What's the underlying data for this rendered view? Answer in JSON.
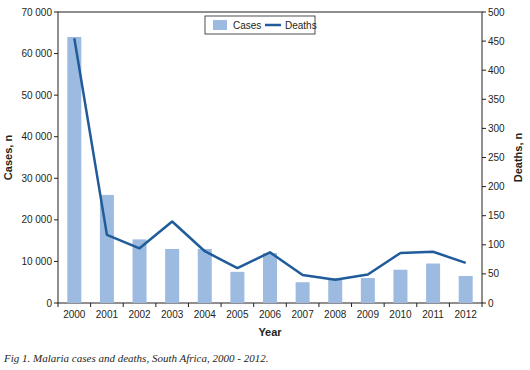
{
  "chart_data": {
    "type": "bar",
    "caption": "Fig 1. Malaria cases and deaths, South Africa, 2000 - 2012.",
    "xlabel": "Year",
    "ylabel": "Cases, n",
    "y2label": "Deaths, n",
    "categories": [
      "2000",
      "2001",
      "2002",
      "2003",
      "2004",
      "2005",
      "2006",
      "2007",
      "2008",
      "2009",
      "2010",
      "2011",
      "2012"
    ],
    "series": [
      {
        "name": "Cases",
        "type": "bar",
        "color": "#9dbbe0",
        "values": [
          64000,
          26000,
          15300,
          13000,
          13000,
          7500,
          12000,
          5000,
          6000,
          6000,
          8000,
          9500,
          6500
        ]
      },
      {
        "name": "Deaths",
        "type": "line",
        "color": "#1f5c99",
        "axis": "y2",
        "values": [
          455,
          117,
          94,
          140,
          89,
          60,
          87,
          48,
          40,
          49,
          86,
          88,
          69
        ]
      }
    ],
    "ylim": [
      0,
      70000
    ],
    "yticks": [
      0,
      {
        "value": 10000,
        "label": "10 000"
      },
      {
        "value": 20000,
        "label": "20 000"
      },
      {
        "value": 30000,
        "label": "30 000"
      },
      {
        "value": 40000,
        "label": "40 000"
      },
      {
        "value": 50000,
        "label": "50 000"
      },
      {
        "value": 60000,
        "label": "60 000"
      },
      {
        "value": 70000,
        "label": "70 000"
      }
    ],
    "y2lim": [
      0,
      500
    ],
    "y2ticks": [
      0,
      50,
      100,
      150,
      200,
      250,
      300,
      350,
      400,
      450,
      500
    ],
    "legend": "top"
  }
}
